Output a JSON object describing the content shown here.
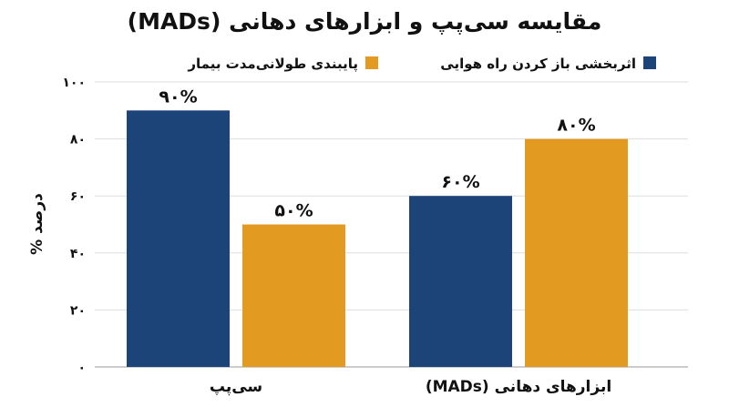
{
  "chart_data": {
    "type": "bar",
    "title": "مقایسه سی‌پپ و ابزارهای دهانی (MADs)",
    "ylabel": "درصد %",
    "xlabel": "",
    "ylim": [
      0,
      100
    ],
    "yticks": [
      0,
      20,
      40,
      60,
      80,
      100
    ],
    "ytick_labels": [
      "۰",
      "۲۰",
      "۴۰",
      "۶۰",
      "۸۰",
      "۱۰۰"
    ],
    "categories": [
      "سی‌پپ",
      "ابزارهای دهانی (MADs)"
    ],
    "series": [
      {
        "name": "اثربخشی باز کردن راه هوایی",
        "color": "#1c4478",
        "values": [
          90,
          60
        ],
        "labels": [
          "۹۰%",
          "۶۰%"
        ]
      },
      {
        "name": "پایبندی طولانی‌مدت بیمار",
        "color": "#e39a21",
        "values": [
          50,
          80
        ],
        "labels": [
          "۵۰%",
          "۸۰%"
        ]
      }
    ],
    "grid": true,
    "legend_position": "top"
  }
}
